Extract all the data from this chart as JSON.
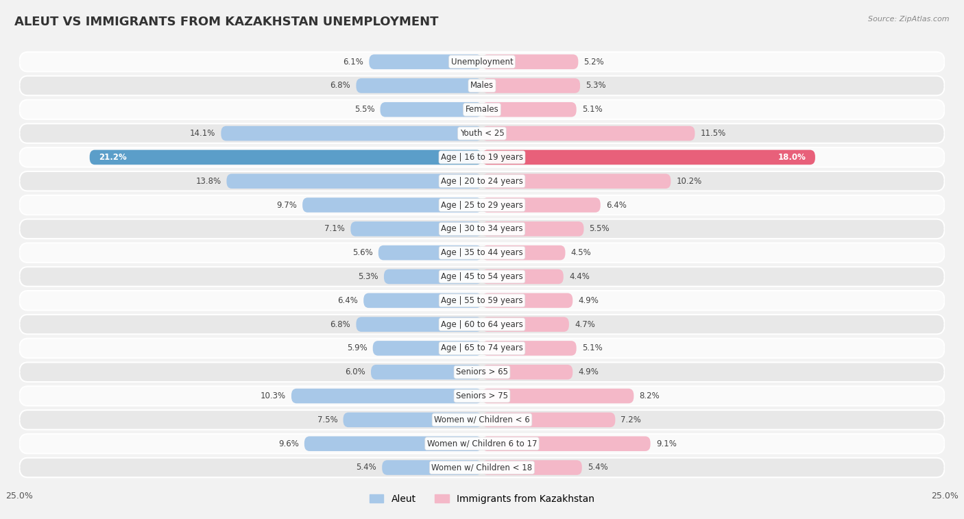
{
  "title": "ALEUT VS IMMIGRANTS FROM KAZAKHSTAN UNEMPLOYMENT",
  "source": "Source: ZipAtlas.com",
  "categories": [
    "Unemployment",
    "Males",
    "Females",
    "Youth < 25",
    "Age | 16 to 19 years",
    "Age | 20 to 24 years",
    "Age | 25 to 29 years",
    "Age | 30 to 34 years",
    "Age | 35 to 44 years",
    "Age | 45 to 54 years",
    "Age | 55 to 59 years",
    "Age | 60 to 64 years",
    "Age | 65 to 74 years",
    "Seniors > 65",
    "Seniors > 75",
    "Women w/ Children < 6",
    "Women w/ Children 6 to 17",
    "Women w/ Children < 18"
  ],
  "aleut_values": [
    6.1,
    6.8,
    5.5,
    14.1,
    21.2,
    13.8,
    9.7,
    7.1,
    5.6,
    5.3,
    6.4,
    6.8,
    5.9,
    6.0,
    10.3,
    7.5,
    9.6,
    5.4
  ],
  "kazakhstan_values": [
    5.2,
    5.3,
    5.1,
    11.5,
    18.0,
    10.2,
    6.4,
    5.5,
    4.5,
    4.4,
    4.9,
    4.7,
    5.1,
    4.9,
    8.2,
    7.2,
    9.1,
    5.4
  ],
  "aleut_color": "#a8c8e8",
  "kazakhstan_color": "#f4b8c8",
  "highlight_aleut_color": "#5b9ec9",
  "highlight_kazakhstan_color": "#e8607a",
  "highlight_row": 4,
  "axis_max": 25.0,
  "background_color": "#f2f2f2",
  "row_bg_light": "#fafafa",
  "row_bg_dark": "#e8e8e8",
  "legend_aleut": "Aleut",
  "legend_kazakhstan": "Immigrants from Kazakhstan"
}
